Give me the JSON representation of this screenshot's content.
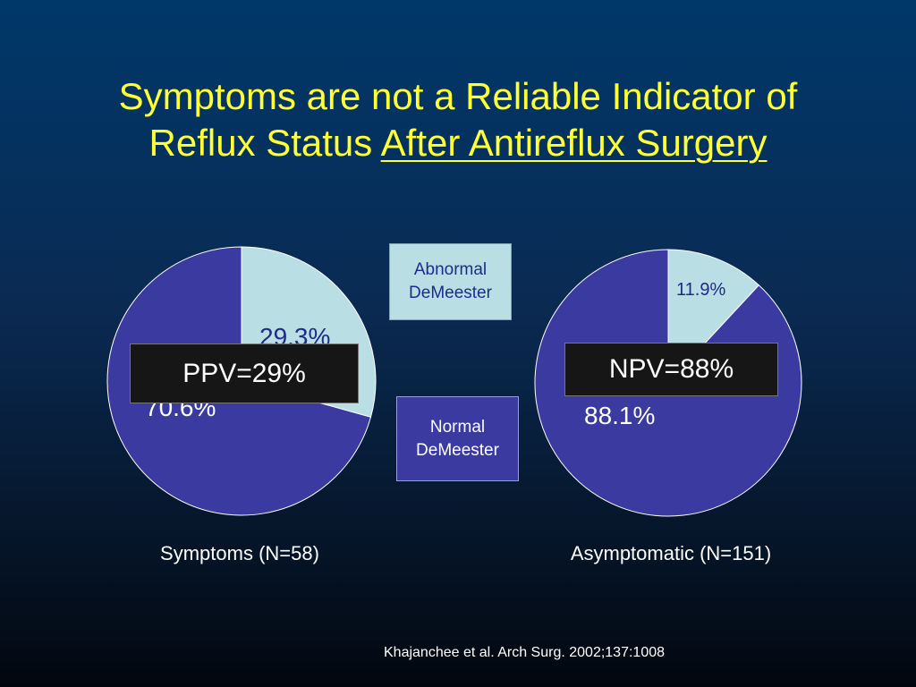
{
  "title": {
    "line1": "Symptoms are not a Reliable Indicator of",
    "line2_plain": "Reflux Status ",
    "line2_underlined": "After Antireflux Surgery"
  },
  "legend": {
    "abnormal_line1": "Abnormal",
    "abnormal_line2": "DeMeester",
    "normal_line1": "Normal",
    "normal_line2": "DeMeester"
  },
  "callouts": {
    "ppv": "PPV=29%",
    "npv": "NPV=88%"
  },
  "citation": "Khajanchee et al. Arch Surg. 2002;137:1008",
  "colors": {
    "abnormal": "#b9dfe4",
    "normal": "#3a3aa0",
    "title": "#ffff33"
  },
  "chart_data": [
    {
      "type": "pie",
      "caption": "Symptoms (N=58)",
      "slices": [
        {
          "name": "Abnormal DeMeester",
          "value": 29.3,
          "label": "29.3%"
        },
        {
          "name": "Normal DeMeester",
          "value": 70.6,
          "label": "70.6%"
        }
      ]
    },
    {
      "type": "pie",
      "caption": "Asymptomatic (N=151)",
      "slices": [
        {
          "name": "Abnormal DeMeester",
          "value": 11.9,
          "label": "11.9%"
        },
        {
          "name": "Normal DeMeester",
          "value": 88.1,
          "label": "88.1%"
        }
      ]
    }
  ]
}
